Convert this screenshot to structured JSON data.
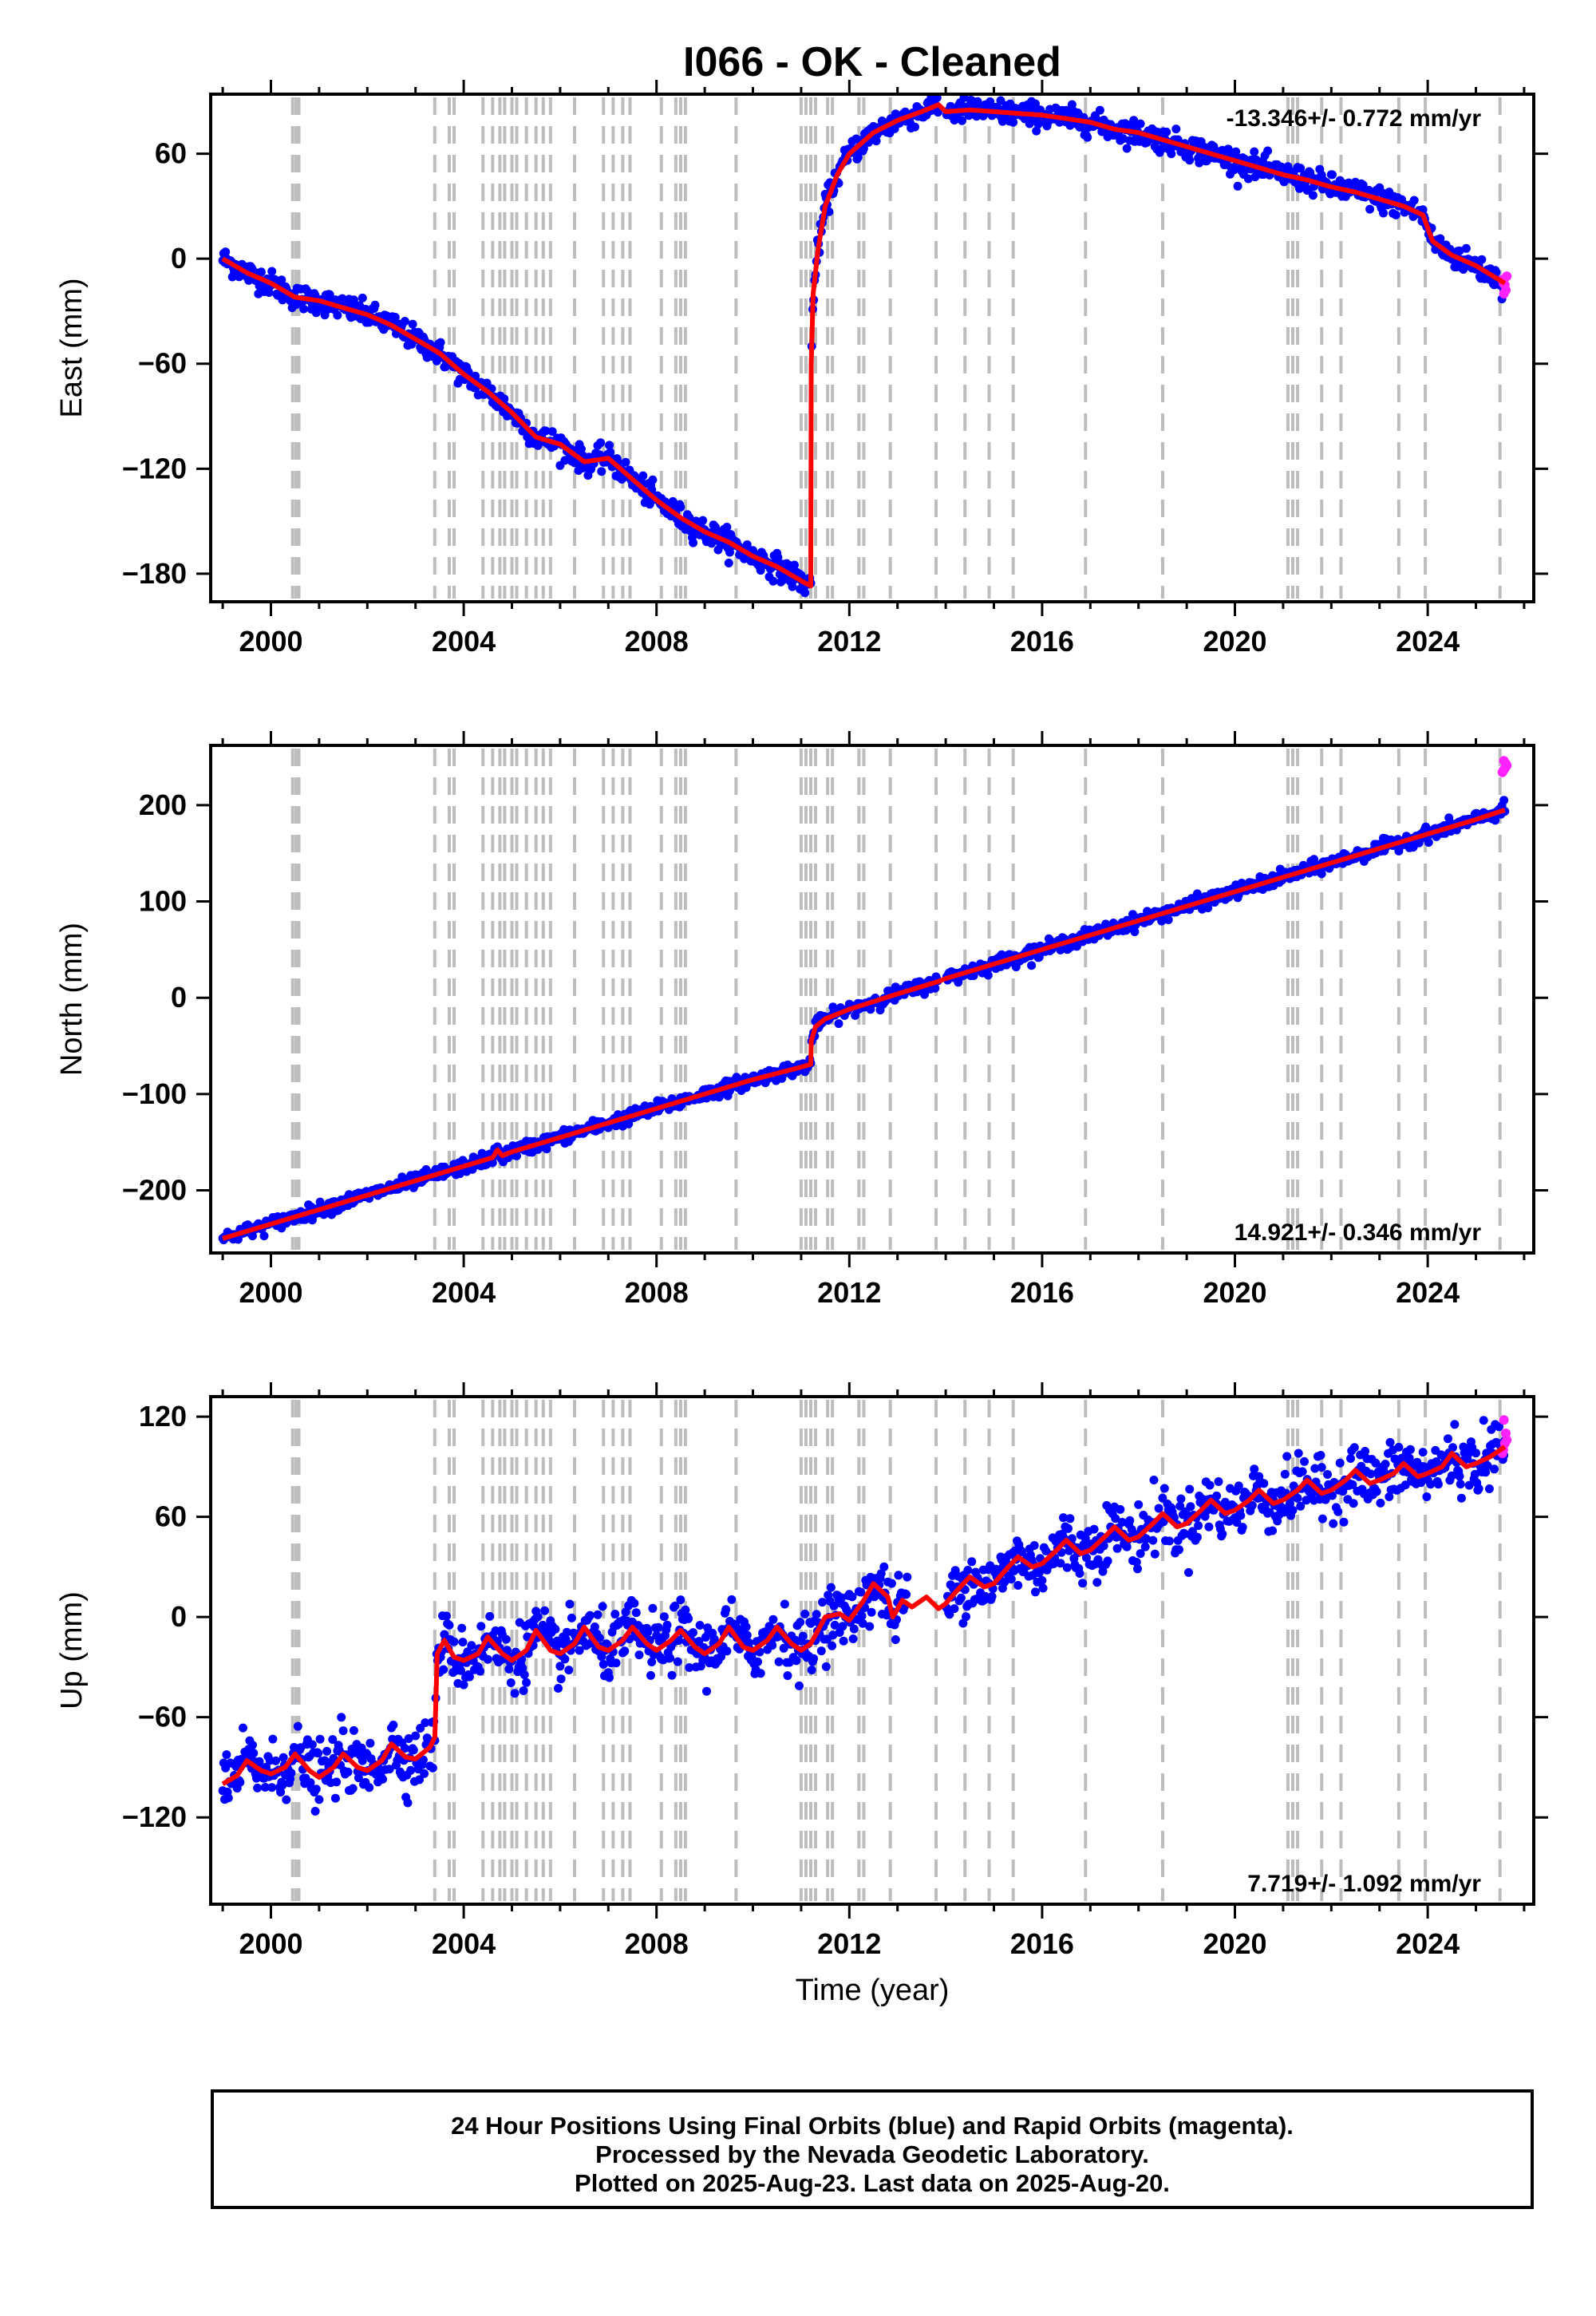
{
  "title": "I066  - OK - Cleaned",
  "colors": {
    "final_points": "#0000ff",
    "rapid_points": "#ff22ff",
    "model_line": "#ff0000",
    "step_lines": "#bdbdbd",
    "frame": "#000000"
  },
  "caption": {
    "line1": "24 Hour Positions Using Final Orbits (blue) and Rapid Orbits (magenta).",
    "line2": "Processed by the Nevada Geodetic Laboratory.",
    "line3": "Plotted on 2025-Aug-23. Last data on 2025-Aug-20."
  },
  "chart_data": [
    {
      "type": "scatter",
      "panel": "east",
      "ylabel": "East (mm)",
      "xlabel": "",
      "rate_label": "-13.346+/- 0.772 mm/yr",
      "rate_position": "top-right",
      "xlim": [
        1998.75,
        2026.2
      ],
      "ylim": [
        -196,
        94
      ],
      "xticks": [
        2000,
        2004,
        2008,
        2012,
        2016,
        2020,
        2024
      ],
      "xtick_labels": [
        "2000",
        "2004",
        "2008",
        "2012",
        "2016",
        "2020",
        "2024"
      ],
      "yticks": [
        60,
        0,
        -60,
        -120,
        -180
      ],
      "ytick_labels": [
        "60",
        "0",
        "−60",
        "−120",
        "−180"
      ],
      "noise_mm": 3.5,
      "gaps": [
        [
          2013.85,
          2014.0
        ]
      ],
      "model": [
        [
          1999.0,
          0
        ],
        [
          1999.5,
          -8
        ],
        [
          2000.0,
          -14
        ],
        [
          2000.5,
          -22
        ],
        [
          2001.0,
          -24
        ],
        [
          2001.5,
          -28
        ],
        [
          2002.0,
          -32
        ],
        [
          2002.5,
          -38
        ],
        [
          2003.0,
          -46
        ],
        [
          2003.5,
          -54
        ],
        [
          2004.0,
          -66
        ],
        [
          2004.5,
          -76
        ],
        [
          2005.0,
          -88
        ],
        [
          2005.5,
          -102
        ],
        [
          2006.0,
          -106
        ],
        [
          2006.5,
          -116
        ],
        [
          2007.0,
          -114
        ],
        [
          2007.5,
          -126
        ],
        [
          2008.0,
          -138
        ],
        [
          2008.5,
          -148
        ],
        [
          2009.0,
          -156
        ],
        [
          2009.5,
          -162
        ],
        [
          2010.0,
          -170
        ],
        [
          2010.5,
          -176
        ],
        [
          2011.0,
          -184
        ],
        [
          2011.2,
          -187
        ],
        [
          2011.21,
          -60
        ],
        [
          2011.25,
          -20
        ],
        [
          2011.35,
          5
        ],
        [
          2011.5,
          30
        ],
        [
          2011.75,
          48
        ],
        [
          2012.0,
          60
        ],
        [
          2012.5,
          72
        ],
        [
          2013.0,
          79
        ],
        [
          2013.5,
          84
        ],
        [
          2013.85,
          88
        ],
        [
          2014.0,
          84
        ],
        [
          2014.5,
          85
        ],
        [
          2015.0,
          84
        ],
        [
          2015.5,
          83
        ],
        [
          2016.0,
          82
        ],
        [
          2016.5,
          80
        ],
        [
          2017.0,
          78
        ],
        [
          2017.5,
          74
        ],
        [
          2018.0,
          72
        ],
        [
          2018.5,
          68
        ],
        [
          2019.0,
          64
        ],
        [
          2019.5,
          60
        ],
        [
          2020.0,
          56
        ],
        [
          2020.5,
          52
        ],
        [
          2021.0,
          48
        ],
        [
          2021.5,
          45
        ],
        [
          2022.0,
          41
        ],
        [
          2022.5,
          38
        ],
        [
          2023.0,
          34
        ],
        [
          2023.5,
          30
        ],
        [
          2023.9,
          25
        ],
        [
          2024.1,
          10
        ],
        [
          2024.5,
          2
        ],
        [
          2025.0,
          -4
        ],
        [
          2025.6,
          -14
        ]
      ],
      "rapid": [
        [
          2025.55,
          -12
        ],
        [
          2025.6,
          -15
        ],
        [
          2025.62,
          -18
        ],
        [
          2025.58,
          -20
        ],
        [
          2025.64,
          -10
        ],
        [
          2025.57,
          -14
        ]
      ]
    },
    {
      "type": "scatter",
      "panel": "north",
      "ylabel": "North (mm)",
      "xlabel": "",
      "rate_label": "14.921+/- 0.346 mm/yr",
      "rate_position": "bottom-right",
      "xlim": [
        1998.75,
        2026.2
      ],
      "ylim": [
        -265,
        262
      ],
      "xticks": [
        2000,
        2004,
        2008,
        2012,
        2016,
        2020,
        2024
      ],
      "xtick_labels": [
        "2000",
        "2004",
        "2008",
        "2012",
        "2016",
        "2020",
        "2024"
      ],
      "yticks": [
        200,
        100,
        0,
        -100,
        -200
      ],
      "ytick_labels": [
        "200",
        "100",
        "0",
        "−100",
        "−200"
      ],
      "noise_mm": 3.5,
      "gaps": [
        [
          2013.85,
          2014.0
        ]
      ],
      "model": [
        [
          1999.0,
          -250
        ],
        [
          2000.0,
          -235
        ],
        [
          2001.0,
          -220
        ],
        [
          2002.0,
          -205
        ],
        [
          2003.0,
          -190
        ],
        [
          2004.0,
          -175
        ],
        [
          2004.6,
          -166
        ],
        [
          2004.7,
          -158
        ],
        [
          2004.8,
          -164
        ],
        [
          2005.0,
          -160
        ],
        [
          2006.0,
          -145
        ],
        [
          2007.0,
          -130
        ],
        [
          2008.0,
          -115
        ],
        [
          2009.0,
          -100
        ],
        [
          2010.0,
          -85
        ],
        [
          2011.0,
          -72
        ],
        [
          2011.2,
          -69
        ],
        [
          2011.21,
          -45
        ],
        [
          2011.3,
          -30
        ],
        [
          2011.5,
          -22
        ],
        [
          2012.0,
          -12
        ],
        [
          2013.0,
          4
        ],
        [
          2013.85,
          17
        ],
        [
          2014.0,
          20
        ],
        [
          2015.0,
          35
        ],
        [
          2016.0,
          50
        ],
        [
          2017.0,
          65
        ],
        [
          2018.0,
          80
        ],
        [
          2019.0,
          95
        ],
        [
          2020.0,
          110
        ],
        [
          2021.0,
          125
        ],
        [
          2022.0,
          140
        ],
        [
          2023.0,
          155
        ],
        [
          2024.0,
          170
        ],
        [
          2025.0,
          185
        ],
        [
          2025.6,
          195
        ]
      ],
      "rapid": [
        [
          2025.55,
          234
        ],
        [
          2025.6,
          238
        ],
        [
          2025.62,
          243
        ],
        [
          2025.58,
          246
        ],
        [
          2025.64,
          241
        ],
        [
          2025.57,
          236
        ]
      ]
    },
    {
      "type": "scatter",
      "panel": "up",
      "ylabel": "Up (mm)",
      "xlabel": "Time (year)",
      "rate_label": "7.719+/- 1.092 mm/yr",
      "rate_position": "bottom-right",
      "xlim": [
        1998.75,
        2026.2
      ],
      "ylim": [
        -172,
        132
      ],
      "xticks": [
        2000,
        2004,
        2008,
        2012,
        2016,
        2020,
        2024
      ],
      "xtick_labels": [
        "2000",
        "2004",
        "2008",
        "2012",
        "2016",
        "2020",
        "2024"
      ],
      "yticks": [
        120,
        60,
        0,
        -60,
        -120
      ],
      "ytick_labels": [
        "120",
        "60",
        "0",
        "−60",
        "−120"
      ],
      "noise_mm": 9,
      "gaps": [
        [
          2013.2,
          2014.0
        ]
      ],
      "model": [
        [
          1999.0,
          -100
        ],
        [
          1999.3,
          -95
        ],
        [
          1999.5,
          -86
        ],
        [
          1999.8,
          -92
        ],
        [
          2000.0,
          -94
        ],
        [
          2000.3,
          -90
        ],
        [
          2000.5,
          -82
        ],
        [
          2000.8,
          -92
        ],
        [
          2001.0,
          -96
        ],
        [
          2001.3,
          -90
        ],
        [
          2001.5,
          -82
        ],
        [
          2001.8,
          -90
        ],
        [
          2002.0,
          -92
        ],
        [
          2002.3,
          -86
        ],
        [
          2002.5,
          -76
        ],
        [
          2002.8,
          -84
        ],
        [
          2003.0,
          -85
        ],
        [
          2003.3,
          -78
        ],
        [
          2003.4,
          -72
        ],
        [
          2003.45,
          -22
        ],
        [
          2003.6,
          -14
        ],
        [
          2003.8,
          -24
        ],
        [
          2004.0,
          -26
        ],
        [
          2004.3,
          -22
        ],
        [
          2004.5,
          -12
        ],
        [
          2004.8,
          -22
        ],
        [
          2005.0,
          -26
        ],
        [
          2005.3,
          -20
        ],
        [
          2005.5,
          -8
        ],
        [
          2005.8,
          -20
        ],
        [
          2006.0,
          -22
        ],
        [
          2006.3,
          -16
        ],
        [
          2006.5,
          -6
        ],
        [
          2006.8,
          -18
        ],
        [
          2007.0,
          -20
        ],
        [
          2007.3,
          -14
        ],
        [
          2007.5,
          -6
        ],
        [
          2007.8,
          -16
        ],
        [
          2008.0,
          -20
        ],
        [
          2008.3,
          -14
        ],
        [
          2008.5,
          -8
        ],
        [
          2008.8,
          -18
        ],
        [
          2009.0,
          -22
        ],
        [
          2009.3,
          -16
        ],
        [
          2009.5,
          -6
        ],
        [
          2009.8,
          -18
        ],
        [
          2010.0,
          -20
        ],
        [
          2010.3,
          -14
        ],
        [
          2010.5,
          -6
        ],
        [
          2010.8,
          -16
        ],
        [
          2011.0,
          -20
        ],
        [
          2011.2,
          -16
        ],
        [
          2011.5,
          0
        ],
        [
          2011.8,
          2
        ],
        [
          2012.0,
          -2
        ],
        [
          2012.3,
          10
        ],
        [
          2012.5,
          20
        ],
        [
          2012.8,
          12
        ],
        [
          2012.9,
          0
        ],
        [
          2013.1,
          10
        ],
        [
          2013.3,
          6
        ],
        [
          2013.6,
          12
        ],
        [
          2013.85,
          5
        ],
        [
          2014.0,
          8
        ],
        [
          2014.3,
          18
        ],
        [
          2014.5,
          24
        ],
        [
          2014.8,
          18
        ],
        [
          2015.0,
          20
        ],
        [
          2015.3,
          30
        ],
        [
          2015.5,
          36
        ],
        [
          2015.8,
          30
        ],
        [
          2016.0,
          32
        ],
        [
          2016.3,
          40
        ],
        [
          2016.5,
          46
        ],
        [
          2016.8,
          38
        ],
        [
          2017.0,
          40
        ],
        [
          2017.3,
          48
        ],
        [
          2017.5,
          54
        ],
        [
          2017.8,
          46
        ],
        [
          2018.0,
          48
        ],
        [
          2018.3,
          56
        ],
        [
          2018.5,
          62
        ],
        [
          2018.8,
          54
        ],
        [
          2019.0,
          56
        ],
        [
          2019.3,
          64
        ],
        [
          2019.5,
          70
        ],
        [
          2019.8,
          62
        ],
        [
          2020.0,
          64
        ],
        [
          2020.3,
          70
        ],
        [
          2020.5,
          76
        ],
        [
          2020.8,
          68
        ],
        [
          2021.0,
          70
        ],
        [
          2021.3,
          76
        ],
        [
          2021.5,
          82
        ],
        [
          2021.8,
          74
        ],
        [
          2022.0,
          76
        ],
        [
          2022.3,
          82
        ],
        [
          2022.5,
          88
        ],
        [
          2022.8,
          80
        ],
        [
          2023.0,
          82
        ],
        [
          2023.3,
          86
        ],
        [
          2023.5,
          92
        ],
        [
          2023.8,
          84
        ],
        [
          2024.0,
          86
        ],
        [
          2024.3,
          90
        ],
        [
          2024.5,
          98
        ],
        [
          2024.8,
          90
        ],
        [
          2025.0,
          92
        ],
        [
          2025.3,
          96
        ],
        [
          2025.6,
          102
        ]
      ],
      "rapid": [
        [
          2025.55,
          98
        ],
        [
          2025.6,
          104
        ],
        [
          2025.62,
          110
        ],
        [
          2025.58,
          118
        ],
        [
          2025.64,
          106
        ],
        [
          2025.57,
          100
        ]
      ]
    }
  ],
  "step_epochs": [
    2000.45,
    2000.52,
    2000.58,
    2003.4,
    2003.7,
    2003.8,
    2004.4,
    2004.6,
    2004.75,
    2004.85,
    2005.0,
    2005.1,
    2005.3,
    2005.5,
    2005.65,
    2005.8,
    2006.3,
    2006.9,
    2007.1,
    2007.3,
    2007.45,
    2008.1,
    2008.4,
    2008.5,
    2008.6,
    2009.65,
    2011.0,
    2011.1,
    2011.2,
    2011.3,
    2011.55,
    2011.65,
    2012.2,
    2012.3,
    2012.85,
    2013.8,
    2014.4,
    2014.9,
    2015.4,
    2016.9,
    2018.5,
    2021.1,
    2021.2,
    2021.3,
    2021.8,
    2022.2,
    2023.4,
    2023.95,
    2025.5
  ]
}
